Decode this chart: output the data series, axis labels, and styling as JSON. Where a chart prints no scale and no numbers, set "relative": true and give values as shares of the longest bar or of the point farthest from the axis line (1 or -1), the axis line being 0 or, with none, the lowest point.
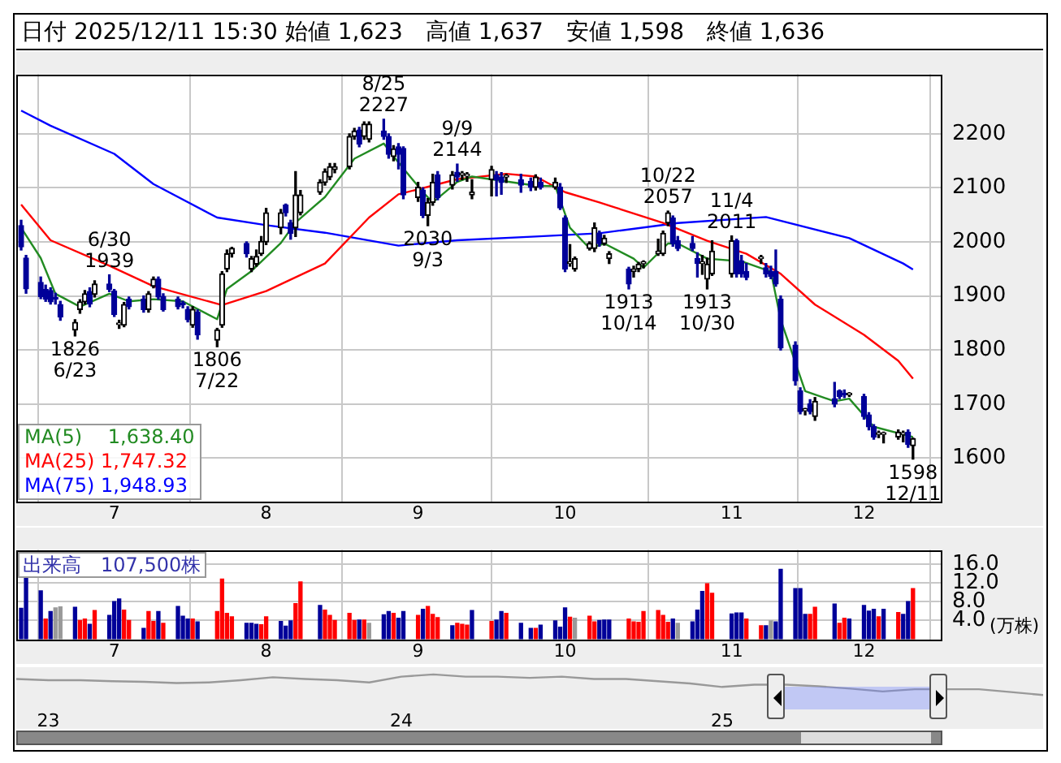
{
  "chart_data": [
    {
      "type": "candlestick",
      "title": "日付 2025/12/11 15:30 始値 1,623　高値 1,637　安値 1,598　終値 1,636",
      "x": [
        "2025-06-12",
        "2025-06-13",
        "2025-06-16",
        "2025-06-17",
        "2025-06-18",
        "2025-06-19",
        "2025-06-20",
        "2025-06-23",
        "2025-06-24",
        "2025-06-25",
        "2025-06-26",
        "2025-06-27",
        "2025-06-30",
        "2025-07-01",
        "2025-07-02",
        "2025-07-03",
        "2025-07-04",
        "2025-07-07",
        "2025-07-08",
        "2025-07-09",
        "2025-07-10",
        "2025-07-11",
        "2025-07-14",
        "2025-07-15",
        "2025-07-16",
        "2025-07-17",
        "2025-07-18",
        "2025-07-22",
        "2025-07-23",
        "2025-07-24",
        "2025-07-25",
        "2025-07-28",
        "2025-07-29",
        "2025-07-30",
        "2025-07-31",
        "2025-08-01",
        "2025-08-04",
        "2025-08-05",
        "2025-08-06",
        "2025-08-07",
        "2025-08-08",
        "2025-08-12",
        "2025-08-13",
        "2025-08-14",
        "2025-08-15",
        "2025-08-18",
        "2025-08-19",
        "2025-08-20",
        "2025-08-21",
        "2025-08-22",
        "2025-08-25",
        "2025-08-26",
        "2025-08-27",
        "2025-08-28",
        "2025-08-29",
        "2025-09-01",
        "2025-09-02",
        "2025-09-03",
        "2025-09-04",
        "2025-09-05",
        "2025-09-08",
        "2025-09-09",
        "2025-09-10",
        "2025-09-11",
        "2025-09-12",
        "2025-09-16",
        "2025-09-17",
        "2025-09-18",
        "2025-09-19",
        "2025-09-22",
        "2025-09-24",
        "2025-09-25",
        "2025-09-26",
        "2025-09-29",
        "2025-09-30",
        "2025-10-01",
        "2025-10-02",
        "2025-10-03",
        "2025-10-06",
        "2025-10-07",
        "2025-10-08",
        "2025-10-09",
        "2025-10-10",
        "2025-10-14",
        "2025-10-15",
        "2025-10-16",
        "2025-10-17",
        "2025-10-20",
        "2025-10-21",
        "2025-10-22",
        "2025-10-23",
        "2025-10-24",
        "2025-10-27",
        "2025-10-28",
        "2025-10-29",
        "2025-10-30",
        "2025-10-31",
        "2025-11-04",
        "2025-11-05",
        "2025-11-06",
        "2025-11-07",
        "2025-11-10",
        "2025-11-11",
        "2025-11-12",
        "2025-11-13",
        "2025-11-14",
        "2025-11-17",
        "2025-11-18",
        "2025-11-19",
        "2025-11-20",
        "2025-11-21",
        "2025-11-25",
        "2025-11-26",
        "2025-11-27",
        "2025-11-28",
        "2025-12-01",
        "2025-12-02",
        "2025-12-03",
        "2025-12-04",
        "2025-12-05",
        "2025-12-08",
        "2025-12-09",
        "2025-12-10",
        "2025-12-11"
      ],
      "ohlc": [
        [
          2030,
          2040,
          1985,
          1991
        ],
        [
          1970,
          1975,
          1905,
          1913
        ],
        [
          1925,
          1935,
          1895,
          1899
        ],
        [
          1912,
          1920,
          1890,
          1894
        ],
        [
          1910,
          1915,
          1885,
          1889
        ],
        [
          1895,
          1905,
          1885,
          1894
        ],
        [
          1884,
          1890,
          1855,
          1861
        ],
        [
          1837,
          1856,
          1826,
          1851
        ],
        [
          1875,
          1893,
          1868,
          1889
        ],
        [
          1889,
          1910,
          1885,
          1904
        ],
        [
          1908,
          1915,
          1880,
          1885
        ],
        [
          1903,
          1928,
          1898,
          1922
        ],
        [
          1922,
          1939,
          1908,
          1912
        ],
        [
          1909,
          1912,
          1862,
          1866
        ],
        [
          1847,
          1855,
          1840,
          1848
        ],
        [
          1846,
          1888,
          1843,
          1884
        ],
        [
          1894,
          1898,
          1876,
          1880
        ],
        [
          1894,
          1900,
          1870,
          1875
        ],
        [
          1875,
          1908,
          1870,
          1904
        ],
        [
          1918,
          1935,
          1915,
          1931
        ],
        [
          1931,
          1935,
          1894,
          1898
        ],
        [
          1899,
          1904,
          1872,
          1875
        ],
        [
          1894,
          1898,
          1876,
          1880
        ],
        [
          1885,
          1890,
          1878,
          1884
        ],
        [
          1875,
          1880,
          1852,
          1856
        ],
        [
          1846,
          1880,
          1842,
          1875
        ],
        [
          1870,
          1874,
          1820,
          1828
        ],
        [
          1818,
          1840,
          1806,
          1837
        ],
        [
          1846,
          1945,
          1842,
          1941
        ],
        [
          1950,
          1985,
          1945,
          1978
        ],
        [
          1978,
          1990,
          1972,
          1988
        ],
        [
          1997,
          2000,
          1972,
          1978
        ],
        [
          1950,
          1973,
          1945,
          1969
        ],
        [
          1959,
          1985,
          1955,
          1973
        ],
        [
          1978,
          2010,
          1975,
          2001
        ],
        [
          2000,
          2062,
          1995,
          2054
        ],
        [
          2026,
          2060,
          2015,
          2054
        ],
        [
          2068,
          2070,
          2048,
          2054
        ],
        [
          2035,
          2040,
          2005,
          2016
        ],
        [
          2026,
          2130,
          2010,
          2087
        ],
        [
          2054,
          2095,
          2050,
          2087
        ],
        [
          2092,
          2115,
          2088,
          2110
        ],
        [
          2110,
          2135,
          2105,
          2130
        ],
        [
          2120,
          2145,
          2115,
          2139
        ],
        [
          2134,
          2145,
          2128,
          2139
        ],
        [
          2139,
          2200,
          2135,
          2195
        ],
        [
          2195,
          2210,
          2190,
          2205
        ],
        [
          2207,
          2212,
          2176,
          2181
        ],
        [
          2195,
          2222,
          2190,
          2218
        ],
        [
          2190,
          2222,
          2185,
          2218
        ],
        [
          2205,
          2227,
          2190,
          2195
        ],
        [
          2195,
          2200,
          2155,
          2162
        ],
        [
          2158,
          2178,
          2150,
          2172
        ],
        [
          2176,
          2182,
          2135,
          2162
        ],
        [
          2173,
          2176,
          2080,
          2087
        ],
        [
          2082,
          2110,
          2075,
          2101
        ],
        [
          2096,
          2100,
          2045,
          2049
        ],
        [
          2049,
          2080,
          2030,
          2073
        ],
        [
          2073,
          2125,
          2068,
          2110
        ],
        [
          2124,
          2130,
          2078,
          2082
        ],
        [
          2105,
          2130,
          2098,
          2124
        ],
        [
          2129,
          2144,
          2112,
          2120
        ],
        [
          2124,
          2130,
          2115,
          2124
        ],
        [
          2122,
          2128,
          2112,
          2122
        ],
        [
          2087,
          2115,
          2080,
          2092
        ],
        [
          2115,
          2140,
          2085,
          2134
        ],
        [
          2124,
          2130,
          2085,
          2115
        ],
        [
          2120,
          2128,
          2088,
          2110
        ],
        [
          2120,
          2125,
          2110,
          2120
        ],
        [
          2115,
          2125,
          2092,
          2105
        ],
        [
          2112,
          2118,
          2095,
          2101
        ],
        [
          2101,
          2124,
          2096,
          2120
        ],
        [
          2110,
          2118,
          2098,
          2101
        ],
        [
          2101,
          2118,
          2098,
          2110
        ],
        [
          2101,
          2108,
          2060,
          2063
        ],
        [
          2044,
          2048,
          1945,
          1950
        ],
        [
          1960,
          1995,
          1955,
          1960
        ],
        [
          1950,
          1972,
          1946,
          1969
        ],
        [
          1988,
          2000,
          1985,
          1997
        ],
        [
          1988,
          2035,
          1982,
          2026
        ],
        [
          2016,
          2020,
          1992,
          1997
        ],
        [
          1997,
          2012,
          1994,
          2007
        ],
        [
          1969,
          1982,
          1960,
          1978
        ],
        [
          1950,
          1953,
          1913,
          1922
        ],
        [
          1945,
          1955,
          1935,
          1950
        ],
        [
          1950,
          1962,
          1945,
          1959
        ],
        [
          1960,
          1965,
          1952,
          1960
        ],
        [
          1978,
          2005,
          1975,
          1983
        ],
        [
          1978,
          2020,
          1975,
          2016
        ],
        [
          2035,
          2057,
          2030,
          2054
        ],
        [
          2044,
          2048,
          1992,
          1997
        ],
        [
          2002,
          2010,
          1984,
          1988
        ],
        [
          1997,
          2010,
          1984,
          1988
        ],
        [
          1969,
          1980,
          1935,
          1960
        ],
        [
          1960,
          1975,
          1940,
          1960
        ],
        [
          1931,
          1970,
          1913,
          1959
        ],
        [
          1941,
          2002,
          1938,
          1983
        ],
        [
          1941,
          2011,
          1935,
          2002
        ],
        [
          2002,
          2005,
          1935,
          1941
        ],
        [
          1965,
          1975,
          1935,
          1941
        ],
        [
          1945,
          1960,
          1930,
          1934
        ],
        [
          1969,
          1975,
          1960,
          1969
        ],
        [
          1952,
          1960,
          1935,
          1941
        ],
        [
          1945,
          1955,
          1932,
          1936
        ],
        [
          1945,
          1985,
          1918,
          1922
        ],
        [
          1894,
          1900,
          1800,
          1804
        ],
        [
          1809,
          1815,
          1735,
          1743
        ],
        [
          1724,
          1730,
          1682,
          1686
        ],
        [
          1688,
          1692,
          1680,
          1688
        ],
        [
          1700,
          1708,
          1682,
          1686
        ],
        [
          1677,
          1712,
          1670,
          1705
        ],
        [
          1710,
          1740,
          1695,
          1700
        ],
        [
          1724,
          1726,
          1710,
          1714
        ],
        [
          1719,
          1726,
          1712,
          1717
        ],
        [
          1717,
          1721,
          1714,
          1719
        ],
        [
          1714,
          1718,
          1672,
          1677
        ],
        [
          1680,
          1684,
          1652,
          1658
        ],
        [
          1658,
          1662,
          1635,
          1639
        ],
        [
          1644,
          1650,
          1638,
          1644
        ],
        [
          1644,
          1648,
          1628,
          1644
        ],
        [
          1639,
          1652,
          1635,
          1648
        ],
        [
          1644,
          1650,
          1630,
          1644
        ],
        [
          1648,
          1652,
          1620,
          1625
        ],
        [
          1623,
          1637,
          1598,
          1636
        ]
      ],
      "series": [
        {
          "type": "line",
          "name": "MA(5)　 1,638.40",
          "color": "#228b22",
          "x": [
            "2025-06-12",
            "2025-06-16",
            "2025-06-19",
            "2025-06-24",
            "2025-06-30",
            "2025-07-04",
            "2025-07-09",
            "2025-07-15",
            "2025-07-22",
            "2025-07-24",
            "2025-07-29",
            "2025-08-04",
            "2025-08-07",
            "2025-08-13",
            "2025-08-19",
            "2025-08-25",
            "2025-08-27",
            "2025-09-02",
            "2025-09-04",
            "2025-09-09",
            "2025-09-12",
            "2025-09-25",
            "2025-09-29",
            "2025-10-02",
            "2025-10-06",
            "2025-10-09",
            "2025-10-15",
            "2025-10-17",
            "2025-10-22",
            "2025-10-24",
            "2025-10-30",
            "2025-11-06",
            "2025-11-12",
            "2025-11-14",
            "2025-11-19",
            "2025-11-25",
            "2025-11-28",
            "2025-12-03",
            "2025-12-11"
          ],
          "values": [
            2026,
            1970,
            1904,
            1880,
            1904,
            1890,
            1894,
            1890,
            1857,
            1913,
            1946,
            1998,
            2036,
            2083,
            2154,
            2182,
            2158,
            2092,
            2073,
            2111,
            2121,
            2104,
            2103,
            2026,
            1988,
            1997,
            1969,
            1952,
            1997,
            1997,
            1969,
            1964,
            1945,
            1856,
            1724,
            1705,
            1710,
            1658,
            1639
          ]
        },
        {
          "type": "line",
          "name": "MA(25) 1,747.32",
          "color": "#ff0000",
          "x": [
            "2025-06-12",
            "2025-06-18",
            "2025-06-30",
            "2025-07-09",
            "2025-07-23",
            "2025-08-01",
            "2025-08-13",
            "2025-08-22",
            "2025-08-28",
            "2025-09-09",
            "2025-09-19",
            "2025-09-25",
            "2025-10-01",
            "2025-10-08",
            "2025-10-21",
            "2025-10-30",
            "2025-11-07",
            "2025-11-14",
            "2025-11-21",
            "2025-12-01",
            "2025-12-08",
            "2025-12-11"
          ],
          "values": [
            2069,
            2003,
            1956,
            1918,
            1883,
            1909,
            1960,
            2045,
            2088,
            2116,
            2126,
            2121,
            2092,
            2073,
            2035,
            2002,
            1978,
            1941,
            1884,
            1828,
            1780,
            1747
          ]
        },
        {
          "type": "line",
          "name": "MA(75) 1,948.93",
          "color": "#0000ff",
          "x": [
            "2025-06-12",
            "2025-06-18",
            "2025-07-01",
            "2025-07-09",
            "2025-07-22",
            "2025-08-01",
            "2025-08-13",
            "2025-08-28",
            "2025-09-09",
            "2025-09-25",
            "2025-10-08",
            "2025-10-24",
            "2025-11-11",
            "2025-11-28",
            "2025-12-09",
            "2025-12-11"
          ],
          "values": [
            2243,
            2215,
            2163,
            2107,
            2045,
            2031,
            2017,
            1993,
            2003,
            2010,
            2016,
            2035,
            2046,
            2007,
            1960,
            1949
          ]
        }
      ],
      "xticks": [
        {
          "value": "2025-07-01",
          "label": "7"
        },
        {
          "value": "2025-08-01",
          "label": "8"
        },
        {
          "value": "2025-09-01",
          "label": "9"
        },
        {
          "value": "2025-10-01",
          "label": "10"
        },
        {
          "value": "2025-11-04",
          "label": "11"
        },
        {
          "value": "2025-12-01",
          "label": "12"
        }
      ],
      "xlim": [
        "2025-06-11",
        "2025-12-17"
      ],
      "ylim": [
        1520,
        2310
      ],
      "yticks": [
        1600,
        1700,
        1800,
        1900,
        2000,
        2100,
        2200
      ],
      "grid": true,
      "legend": "bottom left",
      "marker": "none",
      "annotations": [
        {
          "text": "1826\n6/23",
          "x": "2025-06-23",
          "y": 1826
        },
        {
          "text": "6/30\n1939",
          "x": "2025-06-30",
          "y": 1939
        },
        {
          "text": "1806\n7/22",
          "x": "2025-07-22",
          "y": 1806
        },
        {
          "text": "8/25\n2227",
          "x": "2025-08-25",
          "y": 2227
        },
        {
          "text": "2030\n9/3",
          "x": "2025-09-03",
          "y": 2030
        },
        {
          "text": "9/9\n2144",
          "x": "2025-09-09",
          "y": 2144
        },
        {
          "text": "1913\n10/14",
          "x": "2025-10-14",
          "y": 1913
        },
        {
          "text": "10/22\n2057",
          "x": "2025-10-22",
          "y": 2057
        },
        {
          "text": "1913\n10/30",
          "x": "2025-10-30",
          "y": 1913
        },
        {
          "text": "11/4\n2011",
          "x": "2025-11-04",
          "y": 2011
        },
        {
          "text": "1598\n12/11",
          "x": "2025-12-11",
          "y": 1598
        }
      ]
    },
    {
      "type": "bar",
      "title": "出来高　107,500株",
      "ylabel": "(万株)",
      "x": [
        "2025-06-12",
        "2025-06-13",
        "2025-06-16",
        "2025-06-17",
        "2025-06-18",
        "2025-06-19",
        "2025-06-20",
        "2025-06-23",
        "2025-06-24",
        "2025-06-25",
        "2025-06-26",
        "2025-06-27",
        "2025-06-30",
        "2025-07-01",
        "2025-07-02",
        "2025-07-03",
        "2025-07-04",
        "2025-07-07",
        "2025-07-08",
        "2025-07-09",
        "2025-07-10",
        "2025-07-11",
        "2025-07-14",
        "2025-07-15",
        "2025-07-16",
        "2025-07-17",
        "2025-07-18",
        "2025-07-22",
        "2025-07-23",
        "2025-07-24",
        "2025-07-25",
        "2025-07-28",
        "2025-07-29",
        "2025-07-30",
        "2025-07-31",
        "2025-08-01",
        "2025-08-04",
        "2025-08-05",
        "2025-08-06",
        "2025-08-07",
        "2025-08-08",
        "2025-08-12",
        "2025-08-13",
        "2025-08-14",
        "2025-08-15",
        "2025-08-18",
        "2025-08-19",
        "2025-08-20",
        "2025-08-21",
        "2025-08-22",
        "2025-08-25",
        "2025-08-26",
        "2025-08-27",
        "2025-08-28",
        "2025-08-29",
        "2025-09-01",
        "2025-09-02",
        "2025-09-03",
        "2025-09-04",
        "2025-09-05",
        "2025-09-08",
        "2025-09-09",
        "2025-09-10",
        "2025-09-11",
        "2025-09-12",
        "2025-09-16",
        "2025-09-17",
        "2025-09-18",
        "2025-09-19",
        "2025-09-22",
        "2025-09-24",
        "2025-09-25",
        "2025-09-26",
        "2025-09-29",
        "2025-09-30",
        "2025-10-01",
        "2025-10-02",
        "2025-10-03",
        "2025-10-06",
        "2025-10-07",
        "2025-10-08",
        "2025-10-09",
        "2025-10-10",
        "2025-10-14",
        "2025-10-15",
        "2025-10-16",
        "2025-10-17",
        "2025-10-20",
        "2025-10-21",
        "2025-10-22",
        "2025-10-23",
        "2025-10-24",
        "2025-10-27",
        "2025-10-28",
        "2025-10-29",
        "2025-10-30",
        "2025-10-31",
        "2025-11-04",
        "2025-11-05",
        "2025-11-06",
        "2025-11-07",
        "2025-11-10",
        "2025-11-11",
        "2025-11-12",
        "2025-11-13",
        "2025-11-14",
        "2025-11-17",
        "2025-11-18",
        "2025-11-19",
        "2025-11-20",
        "2025-11-21",
        "2025-11-25",
        "2025-11-26",
        "2025-11-27",
        "2025-11-28",
        "2025-12-01",
        "2025-12-02",
        "2025-12-03",
        "2025-12-04",
        "2025-12-05",
        "2025-12-08",
        "2025-12-09",
        "2025-12-10",
        "2025-12-11"
      ],
      "values": [
        6.6,
        13.1,
        10.3,
        4.3,
        5.9,
        6.7,
        6.9,
        6.8,
        4.0,
        4.3,
        3.2,
        6.1,
        5.1,
        8.0,
        8.6,
        6.2,
        4.0,
        2.3,
        5.9,
        3.8,
        5.9,
        3.4,
        7.0,
        4.9,
        4.3,
        4.3,
        3.7,
        5.9,
        12.8,
        5.5,
        4.8,
        3.4,
        3.4,
        3.2,
        3.1,
        4.8,
        3.8,
        2.8,
        3.9,
        7.6,
        12.2,
        7.2,
        6.2,
        5.1,
        4.0,
        5.5,
        4.0,
        4.1,
        4.1,
        3.4,
        5.2,
        5.9,
        5.5,
        4.5,
        5.9,
        5.1,
        6.4,
        7.0,
        5.3,
        4.6,
        2.9,
        3.4,
        3.2,
        3.0,
        6.1,
        3.8,
        4.1,
        5.9,
        5.5,
        3.4,
        2.3,
        2.3,
        3.0,
        3.9,
        2.6,
        6.7,
        4.7,
        4.5,
        4.9,
        3.7,
        4.0,
        4.1,
        4.1,
        4.3,
        3.7,
        3.6,
        5.9,
        6.1,
        5.1,
        3.6,
        4.3,
        3.4,
        3.7,
        6.2,
        10.2,
        11.8,
        9.8,
        5.4,
        5.6,
        5.6,
        4.3,
        2.9,
        2.9,
        3.9,
        3.7,
        14.9,
        10.8,
        10.8,
        5.3,
        5.3,
        6.8,
        7.5,
        3.4,
        4.5,
        4.3,
        7.2,
        6.0,
        6.4,
        4.8,
        6.4,
        5.7,
        5.3,
        8.0,
        10.8
      ],
      "colors": [
        "#000099",
        "#000099",
        "#000099",
        "#ff0000",
        "#000099",
        "#999999",
        "#999999",
        "#000099",
        "#ff0000",
        "#ff0000",
        "#000099",
        "#ff0000",
        "#000099",
        "#000099",
        "#000099",
        "#ff0000",
        "#ff0000",
        "#000099",
        "#ff0000",
        "#ff0000",
        "#000099",
        "#ff0000",
        "#000099",
        "#000099",
        "#000099",
        "#ff0000",
        "#000099",
        "#ff0000",
        "#ff0000",
        "#ff0000",
        "#ff0000",
        "#000099",
        "#000099",
        "#000099",
        "#ff0000",
        "#ff0000",
        "#000099",
        "#000099",
        "#000099",
        "#ff0000",
        "#ff0000",
        "#000099",
        "#ff0000",
        "#ff0000",
        "#ff0000",
        "#ff0000",
        "#ff0000",
        "#000099",
        "#ff0000",
        "#999999",
        "#000099",
        "#000099",
        "#ff0000",
        "#000099",
        "#000099",
        "#ff0000",
        "#000099",
        "#ff0000",
        "#ff0000",
        "#ff0000",
        "#000099",
        "#ff0000",
        "#ff0000",
        "#ff0000",
        "#000099",
        "#ff0000",
        "#000099",
        "#000099",
        "#ff0000",
        "#000099",
        "#000099",
        "#ff0000",
        "#000099",
        "#000099",
        "#000099",
        "#000099",
        "#ff0000",
        "#999999",
        "#ff0000",
        "#ff0000",
        "#000099",
        "#000099",
        "#000099",
        "#ff0000",
        "#ff0000",
        "#ff0000",
        "#ff0000",
        "#ff0000",
        "#ff0000",
        "#ff0000",
        "#000099",
        "#999999",
        "#000099",
        "#000099",
        "#000099",
        "#ff0000",
        "#ff0000",
        "#000099",
        "#000099",
        "#000099",
        "#ff0000",
        "#ff0000",
        "#000099",
        "#999999",
        "#000099",
        "#000099",
        "#000099",
        "#000099",
        "#000099",
        "#ff0000",
        "#ff0000",
        "#000099",
        "#ff0000",
        "#ff0000",
        "#000099",
        "#000099",
        "#000099",
        "#000099",
        "#ff0000",
        "#000099",
        "#ff0000",
        "#000099",
        "#000099",
        "#ff0000"
      ],
      "xticks": [
        {
          "value": "2025-07-01",
          "label": "7"
        },
        {
          "value": "2025-08-01",
          "label": "8"
        },
        {
          "value": "2025-09-01",
          "label": "9"
        },
        {
          "value": "2025-10-01",
          "label": "10"
        },
        {
          "value": "2025-11-04",
          "label": "11"
        },
        {
          "value": "2025-12-01",
          "label": "12"
        }
      ],
      "xlim": [
        "2025-06-11",
        "2025-12-17"
      ],
      "ylim": [
        0,
        19
      ],
      "yticks": [
        {
          "value": 4,
          "label": "4.0"
        },
        {
          "value": 8,
          "label": "8.0"
        },
        {
          "value": 12,
          "label": "12.0"
        },
        {
          "value": 16,
          "label": "16.0"
        }
      ],
      "grid": true
    },
    {
      "type": "line",
      "relative": true,
      "tick_labels": "x",
      "marker": "none",
      "color": "#999999",
      "categories": [
        null,
        "23",
        null,
        null,
        null,
        null,
        null,
        null,
        null,
        null,
        null,
        null,
        "24",
        null,
        null,
        null,
        null,
        null,
        null,
        null,
        null,
        null,
        "25",
        null,
        null,
        null,
        null,
        null,
        null,
        null,
        null,
        null,
        null
      ],
      "values": [
        0.78,
        0.72,
        0.72,
        0.67,
        0.64,
        0.58,
        0.61,
        0.72,
        0.86,
        0.78,
        0.72,
        0.61,
        0.89,
        1,
        0.89,
        0.89,
        0.83,
        0.89,
        0.78,
        0.78,
        0.67,
        0.56,
        0.39,
        0.5,
        0.5,
        0.42,
        0.31,
        0.17,
        0.28,
        0.28,
        0.28,
        0.14,
        0
      ]
    }
  ]
}
